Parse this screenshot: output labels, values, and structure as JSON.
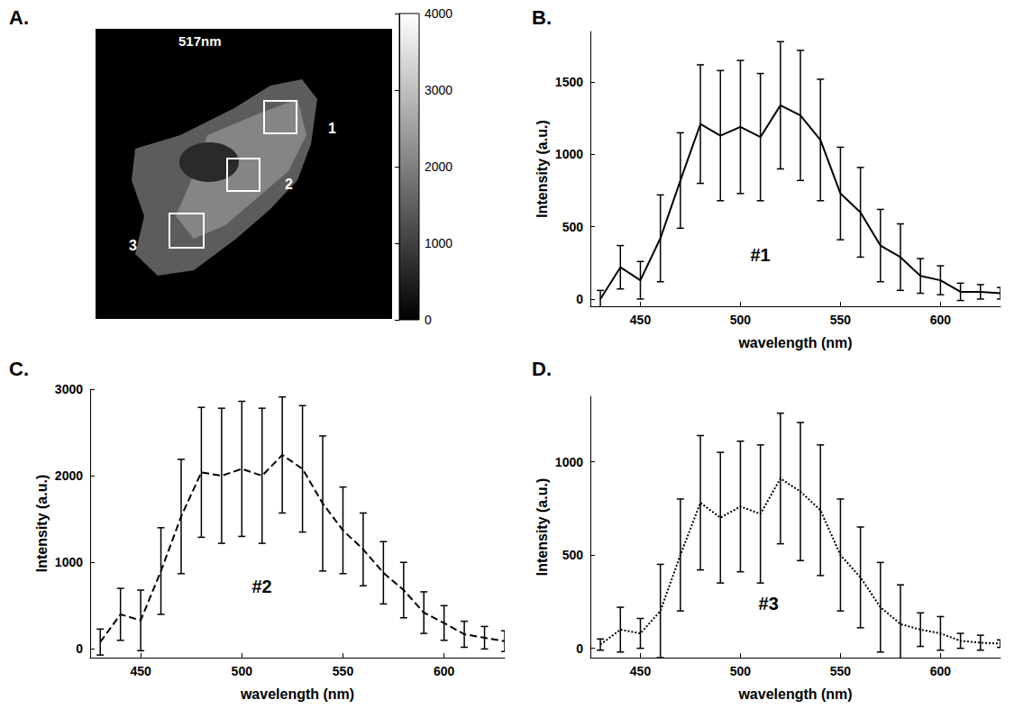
{
  "chart_data": [
    {
      "panel": "A.",
      "type": "image",
      "title": "517nm",
      "regions": [
        "1",
        "2",
        "3"
      ],
      "colorbar": {
        "range": [
          0,
          4000
        ],
        "ticks": [
          0,
          1000,
          2000,
          3000,
          4000
        ]
      }
    },
    {
      "panel": "B.",
      "type": "line",
      "annotation": "#1",
      "grid": false,
      "x_label": "wavelength (nm)",
      "y_label": "Intensity (a.u.)",
      "x": [
        430,
        440,
        450,
        460,
        470,
        480,
        490,
        500,
        510,
        520,
        530,
        540,
        550,
        560,
        570,
        580,
        590,
        600,
        610,
        620,
        630
      ],
      "xlim": [
        425,
        630
      ],
      "xticks": [
        450,
        500,
        550,
        600
      ],
      "ylim": [
        -50,
        1850
      ],
      "yticks": [
        0,
        500,
        1000,
        1500
      ],
      "series": [
        {
          "color": "#000000",
          "line_style": "solid",
          "values": [
            0,
            220,
            130,
            420,
            820,
            1210,
            1130,
            1190,
            1120,
            1340,
            1270,
            1100,
            730,
            600,
            370,
            290,
            160,
            130,
            50,
            50,
            40
          ],
          "errors": [
            60,
            150,
            130,
            300,
            330,
            410,
            450,
            460,
            440,
            440,
            450,
            420,
            320,
            310,
            250,
            230,
            120,
            100,
            60,
            50,
            40
          ]
        }
      ]
    },
    {
      "panel": "C.",
      "type": "line",
      "annotation": "#2",
      "grid": false,
      "x_label": "wavelength (nm)",
      "y_label": "Intensity (a.u.)",
      "x": [
        430,
        440,
        450,
        460,
        470,
        480,
        490,
        500,
        510,
        520,
        530,
        540,
        550,
        560,
        570,
        580,
        590,
        600,
        610,
        620,
        630
      ],
      "xlim": [
        425,
        630
      ],
      "xticks": [
        450,
        500,
        550,
        600
      ],
      "ylim": [
        -100,
        3000
      ],
      "yticks": [
        0,
        1000,
        2000,
        3000
      ],
      "series": [
        {
          "color": "#000000",
          "line_style": "dashed",
          "values": [
            80,
            400,
            330,
            900,
            1530,
            2040,
            2000,
            2080,
            2000,
            2240,
            2080,
            1680,
            1370,
            1150,
            880,
            680,
            420,
            300,
            170,
            130,
            90
          ],
          "errors": [
            150,
            300,
            350,
            500,
            660,
            750,
            780,
            780,
            780,
            670,
            730,
            780,
            500,
            420,
            360,
            320,
            240,
            200,
            150,
            130,
            120
          ]
        }
      ]
    },
    {
      "panel": "D.",
      "type": "line",
      "annotation": "#3",
      "grid": false,
      "x_label": "wavelength (nm)",
      "y_label": "Intensity (a.u.)",
      "x": [
        430,
        440,
        450,
        460,
        470,
        480,
        490,
        500,
        510,
        520,
        530,
        540,
        550,
        560,
        570,
        580,
        590,
        600,
        610,
        620,
        630
      ],
      "xlim": [
        425,
        630
      ],
      "xticks": [
        450,
        500,
        550,
        600
      ],
      "ylim": [
        -50,
        1350
      ],
      "yticks": [
        0,
        500,
        1000
      ],
      "series": [
        {
          "color": "#000000",
          "line_style": "dotted",
          "values": [
            20,
            100,
            80,
            200,
            500,
            780,
            700,
            760,
            720,
            910,
            840,
            740,
            500,
            380,
            220,
            130,
            100,
            80,
            40,
            30,
            25
          ],
          "errors": [
            30,
            120,
            80,
            250,
            300,
            360,
            350,
            350,
            370,
            350,
            370,
            350,
            300,
            270,
            240,
            210,
            90,
            90,
            40,
            40,
            20
          ]
        }
      ]
    }
  ]
}
